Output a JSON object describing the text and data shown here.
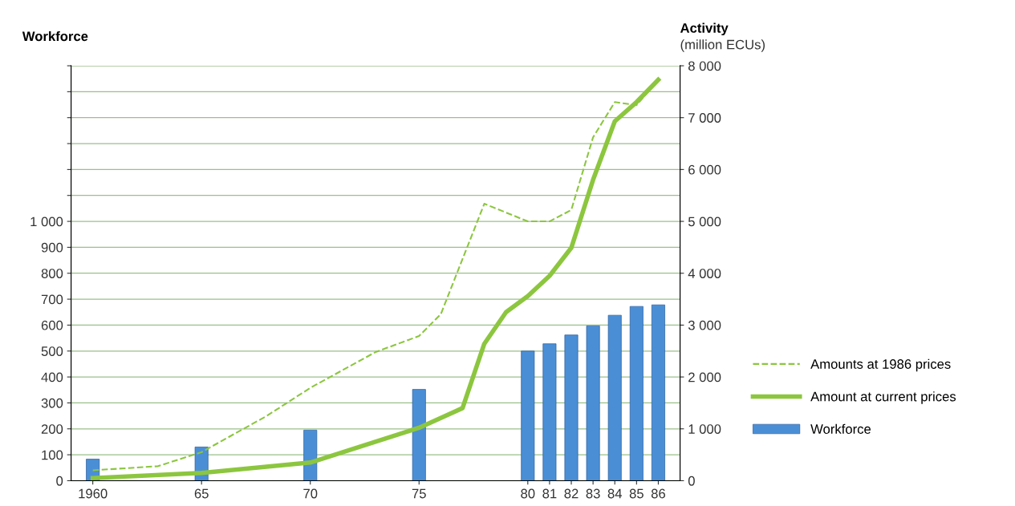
{
  "chart_data": {
    "type": "bar",
    "ylabel": "Workforce",
    "y2label": "Activity",
    "annotations": [
      "(million ECUs)"
    ],
    "x": [
      1960,
      1965,
      1970,
      1975,
      1980,
      1981,
      1982,
      1983,
      1984,
      1985,
      1986
    ],
    "xlim": [
      1959,
      1987
    ],
    "xticks": [
      {
        "value": 1960,
        "label": "1960"
      },
      {
        "value": 1965,
        "label": "65"
      },
      {
        "value": 1970,
        "label": "70"
      },
      {
        "value": 1975,
        "label": "75"
      },
      {
        "value": 1980,
        "label": "80"
      },
      {
        "value": 1981,
        "label": "81"
      },
      {
        "value": 1982,
        "label": "82"
      },
      {
        "value": 1983,
        "label": "83"
      },
      {
        "value": 1984,
        "label": "84"
      },
      {
        "value": 1985,
        "label": "85"
      },
      {
        "value": 1986,
        "label": "86"
      }
    ],
    "ylim": [
      0,
      1600
    ],
    "yticks": [
      0,
      100,
      200,
      300,
      400,
      500,
      600,
      700,
      800,
      900,
      {
        "value": 1000,
        "label": "1 000"
      },
      {
        "value": 1100,
        "label": null
      },
      {
        "value": 1200,
        "label": null
      },
      {
        "value": 1300,
        "label": null
      },
      {
        "value": 1400,
        "label": null
      },
      {
        "value": 1500,
        "label": null
      },
      {
        "value": 1600,
        "label": null
      }
    ],
    "y2lim": [
      0,
      8000
    ],
    "y2ticks": [
      0,
      {
        "value": 1000,
        "label": "1 000"
      },
      {
        "value": 2000,
        "label": "2 000"
      },
      {
        "value": 3000,
        "label": "3 000"
      },
      {
        "value": 4000,
        "label": "4 000"
      },
      {
        "value": 5000,
        "label": "5 000"
      },
      {
        "value": 6000,
        "label": "6 000"
      },
      {
        "value": 7000,
        "label": "7 000"
      },
      {
        "value": 8000,
        "label": "8 000"
      }
    ],
    "grid": "y",
    "legend": "right",
    "series": [
      {
        "name": "Amounts at 1986 prices",
        "type": "line",
        "axis": "y2",
        "line_style": "dashed",
        "color": "#8cc63f",
        "x": [
          1960,
          1963,
          1965,
          1968,
          1970,
          1973,
          1975,
          1976,
          1978,
          1980,
          1981,
          1982,
          1983,
          1984,
          1985,
          1986
        ],
        "values": [
          200,
          280,
          550,
          1250,
          1790,
          2480,
          2790,
          3210,
          5340,
          5000,
          5000,
          5220,
          6620,
          7300,
          7240,
          7730
        ]
      },
      {
        "name": "Amount at current prices",
        "type": "line",
        "axis": "y2",
        "line_style": "solid",
        "color": "#8cc63f",
        "x": [
          1960,
          1965,
          1970,
          1975,
          1977,
          1978,
          1979,
          1980,
          1981,
          1982,
          1983,
          1984,
          1985,
          1986
        ],
        "values": [
          50,
          150,
          350,
          1020,
          1400,
          2640,
          3250,
          3560,
          3950,
          4490,
          5800,
          6930,
          7300,
          7730
        ]
      },
      {
        "name": "Workforce",
        "color": "#4a8fd6",
        "values": [
          83,
          130,
          195,
          352,
          500,
          528,
          562,
          597,
          638,
          672,
          678
        ]
      }
    ]
  }
}
